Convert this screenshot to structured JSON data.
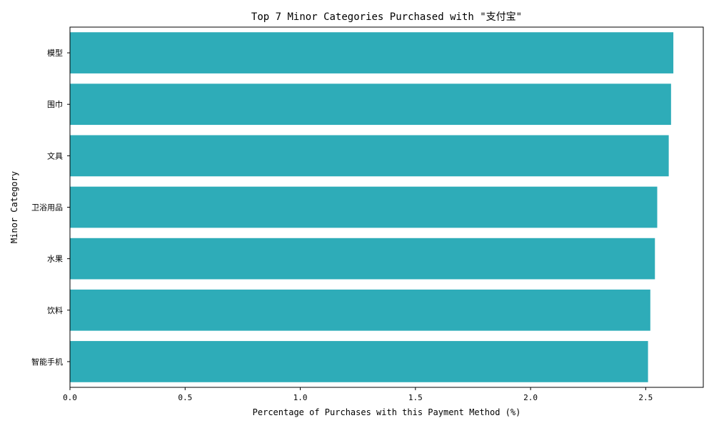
{
  "chart_data": {
    "type": "bar",
    "orientation": "horizontal",
    "title": "Top 7 Minor Categories Purchased with \"支付宝\"",
    "xlabel": "Percentage of Purchases with this Payment Method (%)",
    "ylabel": "Minor Category",
    "categories": [
      "模型",
      "围巾",
      "文具",
      "卫浴用品",
      "水果",
      "饮料",
      "智能手机"
    ],
    "values": [
      2.62,
      2.61,
      2.6,
      2.55,
      2.54,
      2.52,
      2.51
    ],
    "xlim": [
      0,
      2.75
    ],
    "xticks": [
      0.0,
      0.5,
      1.0,
      1.5,
      2.0,
      2.5
    ],
    "xtick_labels": [
      "0.0",
      "0.5",
      "1.0",
      "1.5",
      "2.0",
      "2.5"
    ],
    "bar_color": "#2eacb8",
    "grid": false,
    "legend": "none"
  }
}
